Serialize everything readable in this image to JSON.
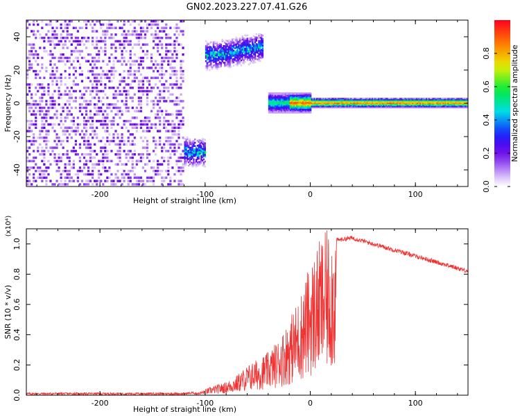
{
  "title": "GN02.2023.227.07.41.G26",
  "chart_data": [
    {
      "type": "heatmap",
      "xlabel": "Height of straight line (km)",
      "ylabel": "Frequency (Hz)",
      "xlim": [
        -270,
        150
      ],
      "ylim": [
        -50,
        50
      ],
      "x_ticks": [
        -200,
        -100,
        0,
        100
      ],
      "y_ticks": [
        -40,
        -20,
        0,
        20,
        40
      ],
      "colorbar": {
        "label": "Normalized spectral amplitude",
        "range": [
          0,
          1
        ],
        "ticks": [
          0.0,
          0.2,
          0.4,
          0.6,
          0.8
        ],
        "colormap": "rainbow-white-to-red"
      },
      "regions": [
        {
          "x": [
            -270,
            -120
          ],
          "y": [
            -50,
            50
          ],
          "amplitude": 0.15,
          "pattern": "noise"
        },
        {
          "x": [
            -120,
            -100
          ],
          "y": [
            -40,
            -20
          ],
          "amplitude": 0.35,
          "center_y": -30
        },
        {
          "x": [
            -100,
            -45
          ],
          "y": [
            22,
            40
          ],
          "amplitude": 0.35,
          "center_y_start": 28,
          "center_y_end": 33
        },
        {
          "x": [
            -40,
            150
          ],
          "y": [
            -6,
            6
          ],
          "amplitude": 0.9,
          "center_y": 0
        }
      ]
    },
    {
      "type": "line",
      "xlabel": "Height of straight line (km)",
      "ylabel": "SNR (10 * v/v)",
      "y_multiplier": "(x10⁴)",
      "xlim": [
        -270,
        150
      ],
      "ylim": [
        0,
        1.1
      ],
      "x_ticks": [
        -200,
        -100,
        0,
        100
      ],
      "y_ticks": [
        0.0,
        0.2,
        0.4,
        0.6,
        0.8,
        1.0
      ],
      "color": "#ee3333",
      "envelope": {
        "x": [
          -270,
          -120,
          -105,
          -95,
          -80,
          -70,
          -60,
          -50,
          -40,
          -30,
          -20,
          -10,
          0,
          10,
          20,
          30,
          40,
          60,
          80,
          100,
          120,
          150
        ],
        "y": [
          0.01,
          0.01,
          0.02,
          0.05,
          0.08,
          0.12,
          0.18,
          0.22,
          0.26,
          0.34,
          0.46,
          0.6,
          0.8,
          0.95,
          1.02,
          1.03,
          1.04,
          1.0,
          0.96,
          0.92,
          0.88,
          0.82
        ]
      }
    }
  ]
}
